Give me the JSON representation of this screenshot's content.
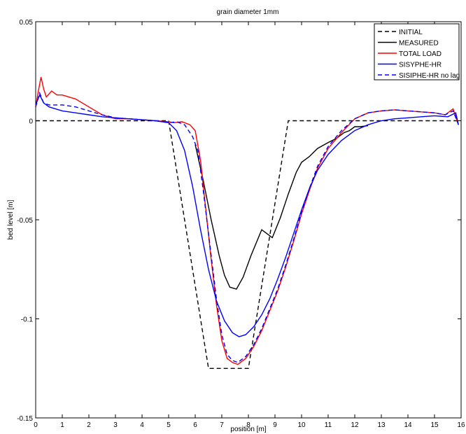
{
  "chart_data": {
    "type": "line",
    "title": "grain diameter 1mm",
    "xlabel": "position [m]",
    "ylabel": "bed level [m]",
    "xlim": [
      0,
      16
    ],
    "ylim": [
      -0.15,
      0.05
    ],
    "x_ticks": [
      0,
      1,
      2,
      3,
      4,
      5,
      6,
      7,
      8,
      9,
      10,
      11,
      12,
      13,
      14,
      15,
      16
    ],
    "y_ticks": [
      -0.15,
      -0.1,
      -0.05,
      0,
      0.05
    ],
    "y_tick_labels": [
      "-0.15",
      "-0.1",
      "-0.05",
      "0",
      "0.05"
    ],
    "grid": false,
    "legend_position": "top-right",
    "series": [
      {
        "name": "INITIAL",
        "color": "#000000",
        "dash": "dashed",
        "points": [
          [
            0,
            0
          ],
          [
            5,
            0
          ],
          [
            6.5,
            -0.125
          ],
          [
            8,
            -0.125
          ],
          [
            9.5,
            0
          ],
          [
            16,
            0
          ]
        ]
      },
      {
        "name": "MEASURED",
        "color": "#000000",
        "dash": "solid",
        "points": [
          [
            6,
            -0.012
          ],
          [
            6.3,
            -0.03
          ],
          [
            6.6,
            -0.05
          ],
          [
            6.9,
            -0.068
          ],
          [
            7.1,
            -0.078
          ],
          [
            7.3,
            -0.084
          ],
          [
            7.55,
            -0.085
          ],
          [
            7.8,
            -0.079
          ],
          [
            8.1,
            -0.068
          ],
          [
            8.5,
            -0.055
          ],
          [
            8.9,
            -0.059
          ],
          [
            9.2,
            -0.049
          ],
          [
            9.5,
            -0.037
          ],
          [
            9.8,
            -0.026
          ],
          [
            10.0,
            -0.021
          ],
          [
            10.3,
            -0.018
          ],
          [
            10.6,
            -0.014
          ],
          [
            11.0,
            -0.011
          ],
          [
            11.3,
            -0.009
          ],
          [
            11.6,
            -0.006
          ],
          [
            11.8,
            -0.005
          ],
          [
            12.0,
            -0.003
          ],
          [
            12.2,
            -0.003
          ],
          [
            12.5,
            -0.0025
          ]
        ]
      },
      {
        "name": "TOTAL LOAD",
        "color": "#ff0000",
        "dash": "solid",
        "points": [
          [
            0,
            0.007
          ],
          [
            0.1,
            0.015
          ],
          [
            0.2,
            0.022
          ],
          [
            0.3,
            0.016
          ],
          [
            0.4,
            0.012
          ],
          [
            0.6,
            0.015
          ],
          [
            0.8,
            0.013
          ],
          [
            1,
            0.013
          ],
          [
            1.5,
            0.011
          ],
          [
            2,
            0.007
          ],
          [
            2.5,
            0.003
          ],
          [
            3,
            0.001
          ],
          [
            3.5,
            0.001
          ],
          [
            4,
            0.0005
          ],
          [
            4.5,
            0
          ],
          [
            5,
            -0.0005
          ],
          [
            5.2,
            -0.001
          ],
          [
            5.5,
            -0.0005
          ],
          [
            5.8,
            -0.002
          ],
          [
            6.0,
            -0.005
          ],
          [
            6.2,
            -0.02
          ],
          [
            6.4,
            -0.045
          ],
          [
            6.6,
            -0.07
          ],
          [
            6.8,
            -0.093
          ],
          [
            7.0,
            -0.111
          ],
          [
            7.2,
            -0.12
          ],
          [
            7.4,
            -0.122
          ],
          [
            7.6,
            -0.123
          ],
          [
            7.9,
            -0.12
          ],
          [
            8.2,
            -0.114
          ],
          [
            8.5,
            -0.106
          ],
          [
            8.8,
            -0.096
          ],
          [
            9.1,
            -0.086
          ],
          [
            9.4,
            -0.074
          ],
          [
            9.7,
            -0.061
          ],
          [
            10.0,
            -0.047
          ],
          [
            10.3,
            -0.035
          ],
          [
            10.6,
            -0.024
          ],
          [
            11.0,
            -0.014
          ],
          [
            11.5,
            -0.006
          ],
          [
            12.0,
            0.001
          ],
          [
            12.5,
            0.004
          ],
          [
            13.0,
            0.005
          ],
          [
            13.5,
            0.0055
          ],
          [
            14.0,
            0.005
          ],
          [
            14.5,
            0.0045
          ],
          [
            15.0,
            0.004
          ],
          [
            15.4,
            0.003
          ],
          [
            15.7,
            0.006
          ],
          [
            15.9,
            -0.002
          ]
        ]
      },
      {
        "name": "SISYPHE-HR",
        "color": "#0000ff",
        "dash": "solid",
        "points": [
          [
            0,
            0.008
          ],
          [
            0.15,
            0.013
          ],
          [
            0.3,
            0.009
          ],
          [
            0.5,
            0.007
          ],
          [
            1,
            0.005
          ],
          [
            1.5,
            0.004
          ],
          [
            2,
            0.003
          ],
          [
            2.5,
            0.002
          ],
          [
            3,
            0.0015
          ],
          [
            3.5,
            0.001
          ],
          [
            4,
            0.0005
          ],
          [
            4.5,
            0
          ],
          [
            5,
            -0.001
          ],
          [
            5.3,
            -0.005
          ],
          [
            5.6,
            -0.015
          ],
          [
            5.9,
            -0.033
          ],
          [
            6.2,
            -0.055
          ],
          [
            6.5,
            -0.075
          ],
          [
            6.8,
            -0.091
          ],
          [
            7.1,
            -0.101
          ],
          [
            7.4,
            -0.107
          ],
          [
            7.65,
            -0.109
          ],
          [
            7.9,
            -0.108
          ],
          [
            8.2,
            -0.104
          ],
          [
            8.5,
            -0.098
          ],
          [
            8.8,
            -0.09
          ],
          [
            9.1,
            -0.08
          ],
          [
            9.4,
            -0.069
          ],
          [
            9.7,
            -0.057
          ],
          [
            10.0,
            -0.045
          ],
          [
            10.3,
            -0.034
          ],
          [
            10.6,
            -0.025
          ],
          [
            11.0,
            -0.017
          ],
          [
            11.5,
            -0.01
          ],
          [
            12.0,
            -0.005
          ],
          [
            12.5,
            -0.002
          ],
          [
            13.0,
            0
          ],
          [
            13.5,
            0.001
          ],
          [
            14.0,
            0.0015
          ],
          [
            14.5,
            0.002
          ],
          [
            15.0,
            0.0025
          ],
          [
            15.5,
            0.002
          ],
          [
            15.8,
            0.004
          ],
          [
            15.9,
            -0.002
          ]
        ]
      },
      {
        "name": "SISIPHE-HR no lag",
        "color": "#0000ff",
        "dash": "dashed",
        "points": [
          [
            0,
            0.007
          ],
          [
            0.15,
            0.014
          ],
          [
            0.3,
            0.009
          ],
          [
            0.5,
            0.008
          ],
          [
            1,
            0.008
          ],
          [
            1.5,
            0.007
          ],
          [
            2,
            0.005
          ],
          [
            2.5,
            0.003
          ],
          [
            3,
            0.0015
          ],
          [
            3.5,
            0.001
          ],
          [
            4,
            0.0005
          ],
          [
            4.5,
            0
          ],
          [
            5,
            -0.001
          ],
          [
            5.3,
            -0.0005
          ],
          [
            5.6,
            -0.002
          ],
          [
            5.9,
            -0.008
          ],
          [
            6.1,
            -0.015
          ],
          [
            6.3,
            -0.035
          ],
          [
            6.6,
            -0.068
          ],
          [
            6.8,
            -0.09
          ],
          [
            7.0,
            -0.108
          ],
          [
            7.2,
            -0.118
          ],
          [
            7.4,
            -0.121
          ],
          [
            7.6,
            -0.122
          ],
          [
            7.9,
            -0.119
          ],
          [
            8.2,
            -0.113
          ],
          [
            8.5,
            -0.105
          ],
          [
            8.8,
            -0.095
          ],
          [
            9.1,
            -0.085
          ],
          [
            9.4,
            -0.073
          ],
          [
            9.7,
            -0.06
          ],
          [
            10.0,
            -0.046
          ],
          [
            10.3,
            -0.034
          ],
          [
            10.6,
            -0.023
          ],
          [
            11.0,
            -0.013
          ],
          [
            11.5,
            -0.005
          ],
          [
            12.0,
            0.001
          ],
          [
            12.5,
            0.004
          ],
          [
            13.0,
            0.005
          ],
          [
            13.5,
            0.0055
          ],
          [
            14.0,
            0.005
          ],
          [
            14.5,
            0.0045
          ],
          [
            15.0,
            0.004
          ],
          [
            15.4,
            0.003
          ],
          [
            15.7,
            0.005
          ],
          [
            15.9,
            -0.002
          ]
        ]
      }
    ]
  }
}
